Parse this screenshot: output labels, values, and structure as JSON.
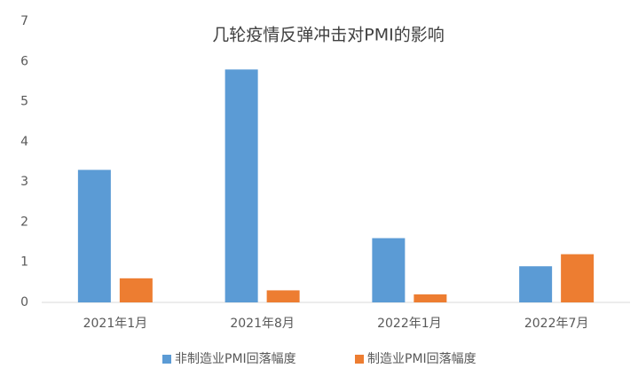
{
  "chart_data": {
    "type": "bar",
    "title": "几轮疫情反弹冲击对PMI的影响",
    "categories": [
      "2021年1月",
      "2021年8月",
      "2022年1月",
      "2022年7月"
    ],
    "series": [
      {
        "name": "非制造业PMI回落幅度",
        "color": "#5b9bd5",
        "values": [
          3.3,
          5.8,
          1.6,
          0.9
        ]
      },
      {
        "name": "制造业PMI回落幅度",
        "color": "#ed7d31",
        "values": [
          0.6,
          0.3,
          0.2,
          1.2
        ]
      }
    ],
    "ylim": [
      0,
      7
    ],
    "yticks": [
      0,
      1,
      2,
      3,
      4,
      5,
      6,
      7
    ],
    "grid": false,
    "legend": "bottom"
  }
}
